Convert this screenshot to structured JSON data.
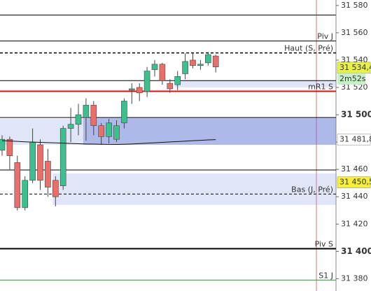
{
  "chart_data": {
    "type": "candlestick",
    "ylim": [
      31371,
      31584
    ],
    "yticks": [
      {
        "value": 31580,
        "label": "31 580",
        "bold": false
      },
      {
        "value": 31560,
        "label": "31 560",
        "bold": false
      },
      {
        "value": 31540,
        "label": "31 540",
        "bold": false
      },
      {
        "value": 31520,
        "label": "31 520",
        "bold": false
      },
      {
        "value": 31500,
        "label": "31 500",
        "bold": true
      },
      {
        "value": 31480,
        "label": "31 480",
        "bold": false
      },
      {
        "value": 31460,
        "label": "31 460",
        "bold": false
      },
      {
        "value": 31440,
        "label": "31 440",
        "bold": false
      },
      {
        "value": 31420,
        "label": "31 420",
        "bold": false
      },
      {
        "value": 31400,
        "label": "31 400",
        "bold": true
      },
      {
        "value": 31380,
        "label": "31 380",
        "bold": false
      }
    ],
    "up_color": "#3cc08f",
    "down_color": "#ea6f6a",
    "open": [
      31474,
      31482,
      31465,
      31432,
      31452,
      31478,
      31466,
      31452,
      31448,
      31490,
      31493,
      31498,
      31507,
      31492,
      31484,
      31482,
      31494,
      31518,
      31520,
      31517,
      31533,
      31537,
      31523,
      31522,
      31530,
      31540,
      31536,
      31538,
      31543
    ],
    "high": [
      31485,
      31484,
      31470,
      31455,
      31490,
      31482,
      31475,
      31455,
      31492,
      31505,
      31508,
      31512,
      31510,
      31494,
      31497,
      31496,
      31512,
      31523,
      31523,
      31535,
      31540,
      31538,
      31526,
      31532,
      31545,
      31545,
      31540,
      31546,
      31544
    ],
    "low": [
      31470,
      31460,
      31430,
      31430,
      31450,
      31445,
      31440,
      31433,
      31445,
      31480,
      31485,
      31481,
      31485,
      31478,
      31479,
      31480,
      31490,
      31508,
      31510,
      31513,
      31528,
      31522,
      31516,
      31518,
      31526,
      31534,
      31533,
      31536,
      31531
    ],
    "close": [
      31482,
      31470,
      31432,
      31452,
      31480,
      31452,
      31447,
      31440,
      31490,
      31493,
      31500,
      31507,
      31492,
      31484,
      31494,
      31492,
      31510,
      31519,
      31516,
      31532,
      31537,
      31525,
      31519,
      31528,
      31539,
      31536,
      31537,
      31544,
      31535
    ],
    "ma_color": "#111111",
    "ma": [
      31481,
      31480.8,
      31480.5,
      31480.2,
      31480,
      31479.8,
      31479.6,
      31479.4,
      31479.2,
      31479,
      31478.8,
      31478.6,
      31478.5,
      31478.4,
      31478.3,
      31478.3,
      31478.4,
      31478.6,
      31478.9,
      31479.2,
      31479.5,
      31479.8,
      31480.1,
      31480.4,
      31480.7,
      31481,
      31481.3,
      31481.6,
      31481.8
    ],
    "zones": [
      {
        "from_index": 0,
        "low": 31478,
        "high": 31497,
        "color": "rgba(130,150,225,0.25)"
      },
      {
        "from_index": 11,
        "low": 31478,
        "high": 31498,
        "color": "rgba(80,100,205,0.35)"
      },
      {
        "from_index": 23,
        "low": 31520,
        "high": 31525,
        "color": "rgba(130,150,225,0.25)"
      },
      {
        "from_index": 7,
        "low": 31434,
        "high": 31457,
        "color": "rgba(130,150,225,0.25)"
      }
    ],
    "levels": [
      {
        "value": 31573,
        "color": "#000000",
        "dash": false,
        "width": 1
      },
      {
        "value": 31554,
        "label": "Piv J",
        "color": "#000000",
        "dash": false,
        "width": 1
      },
      {
        "value": 31545.3,
        "label": "Haut (S, Pré)",
        "color": "#000000",
        "dash": true,
        "width": 1.5
      },
      {
        "value": 31525,
        "color": "#000000",
        "dash": false,
        "width": 1
      },
      {
        "value": 31517.2,
        "label": "mR1 S",
        "color": "#e01010",
        "dash": false,
        "width": 2
      },
      {
        "value": 31498,
        "color": "#000000",
        "dash": false,
        "width": 1
      },
      {
        "value": 31459.6,
        "color": "#000000",
        "dash": false,
        "width": 1
      },
      {
        "value": 31442,
        "label": "Bas (J, Pré)",
        "color": "#000000",
        "dash": true,
        "width": 1
      },
      {
        "value": 31402,
        "label": "Piv S",
        "color": "#000000",
        "dash": false,
        "width": 2
      },
      {
        "value": 31379,
        "label": "S1 J",
        "color": "#2e9a2e",
        "dash": false,
        "width": 1
      }
    ],
    "price_tags": [
      {
        "value": 31534.4,
        "label": "31 534,4",
        "color": "#e8f04a"
      },
      {
        "value": 31481.8,
        "label": "31 481,8",
        "color": "#ffffff"
      },
      {
        "value": 31450.5,
        "label": "31 450,5",
        "color": "#f6f03a"
      }
    ],
    "timer": "2m52s"
  }
}
